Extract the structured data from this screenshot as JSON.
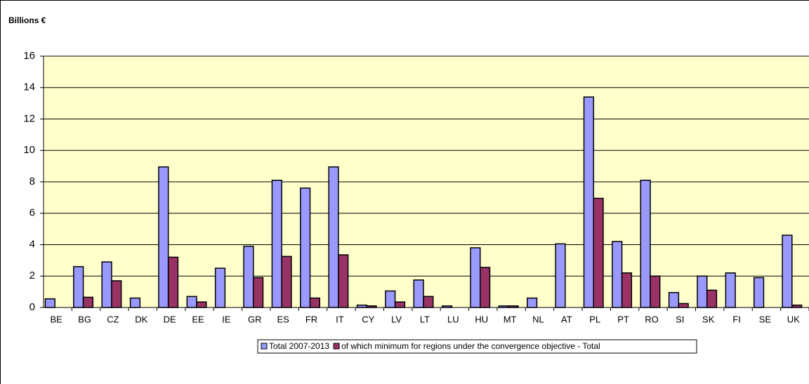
{
  "chart_data": {
    "type": "bar",
    "ylabel": "Billions €",
    "categories": [
      "BE",
      "BG",
      "CZ",
      "DK",
      "DE",
      "EE",
      "IE",
      "GR",
      "ES",
      "FR",
      "IT",
      "CY",
      "LV",
      "LT",
      "LU",
      "HU",
      "MT",
      "NL",
      "AT",
      "PL",
      "PT",
      "RO",
      "SI",
      "SK",
      "FI",
      "SE",
      "UK"
    ],
    "series": [
      {
        "name": "Total 2007-2013",
        "color": "#9999ff",
        "values": [
          0.55,
          2.6,
          2.9,
          0.6,
          8.95,
          0.7,
          2.5,
          3.9,
          8.1,
          7.6,
          8.95,
          0.15,
          1.05,
          1.75,
          0.1,
          3.8,
          0.1,
          0.6,
          4.05,
          13.4,
          4.2,
          8.1,
          0.95,
          2.0,
          2.2,
          1.9,
          4.6
        ]
      },
      {
        "name": "of which minimum for regions under the convergence objective - Total",
        "color": "#993366",
        "values": [
          0,
          0.65,
          1.7,
          0,
          3.2,
          0.35,
          0,
          1.9,
          3.25,
          0.6,
          3.35,
          0.1,
          0.35,
          0.7,
          0,
          2.55,
          0.1,
          0,
          0,
          6.95,
          2.2,
          2.0,
          0.25,
          1.1,
          0,
          0,
          0.15
        ]
      }
    ],
    "ylim": [
      0,
      16
    ],
    "yticks": [
      0,
      2,
      4,
      6,
      8,
      10,
      12,
      14,
      16
    ],
    "grid": true,
    "plot_background": "#ffffcc",
    "legend": "bottom"
  }
}
